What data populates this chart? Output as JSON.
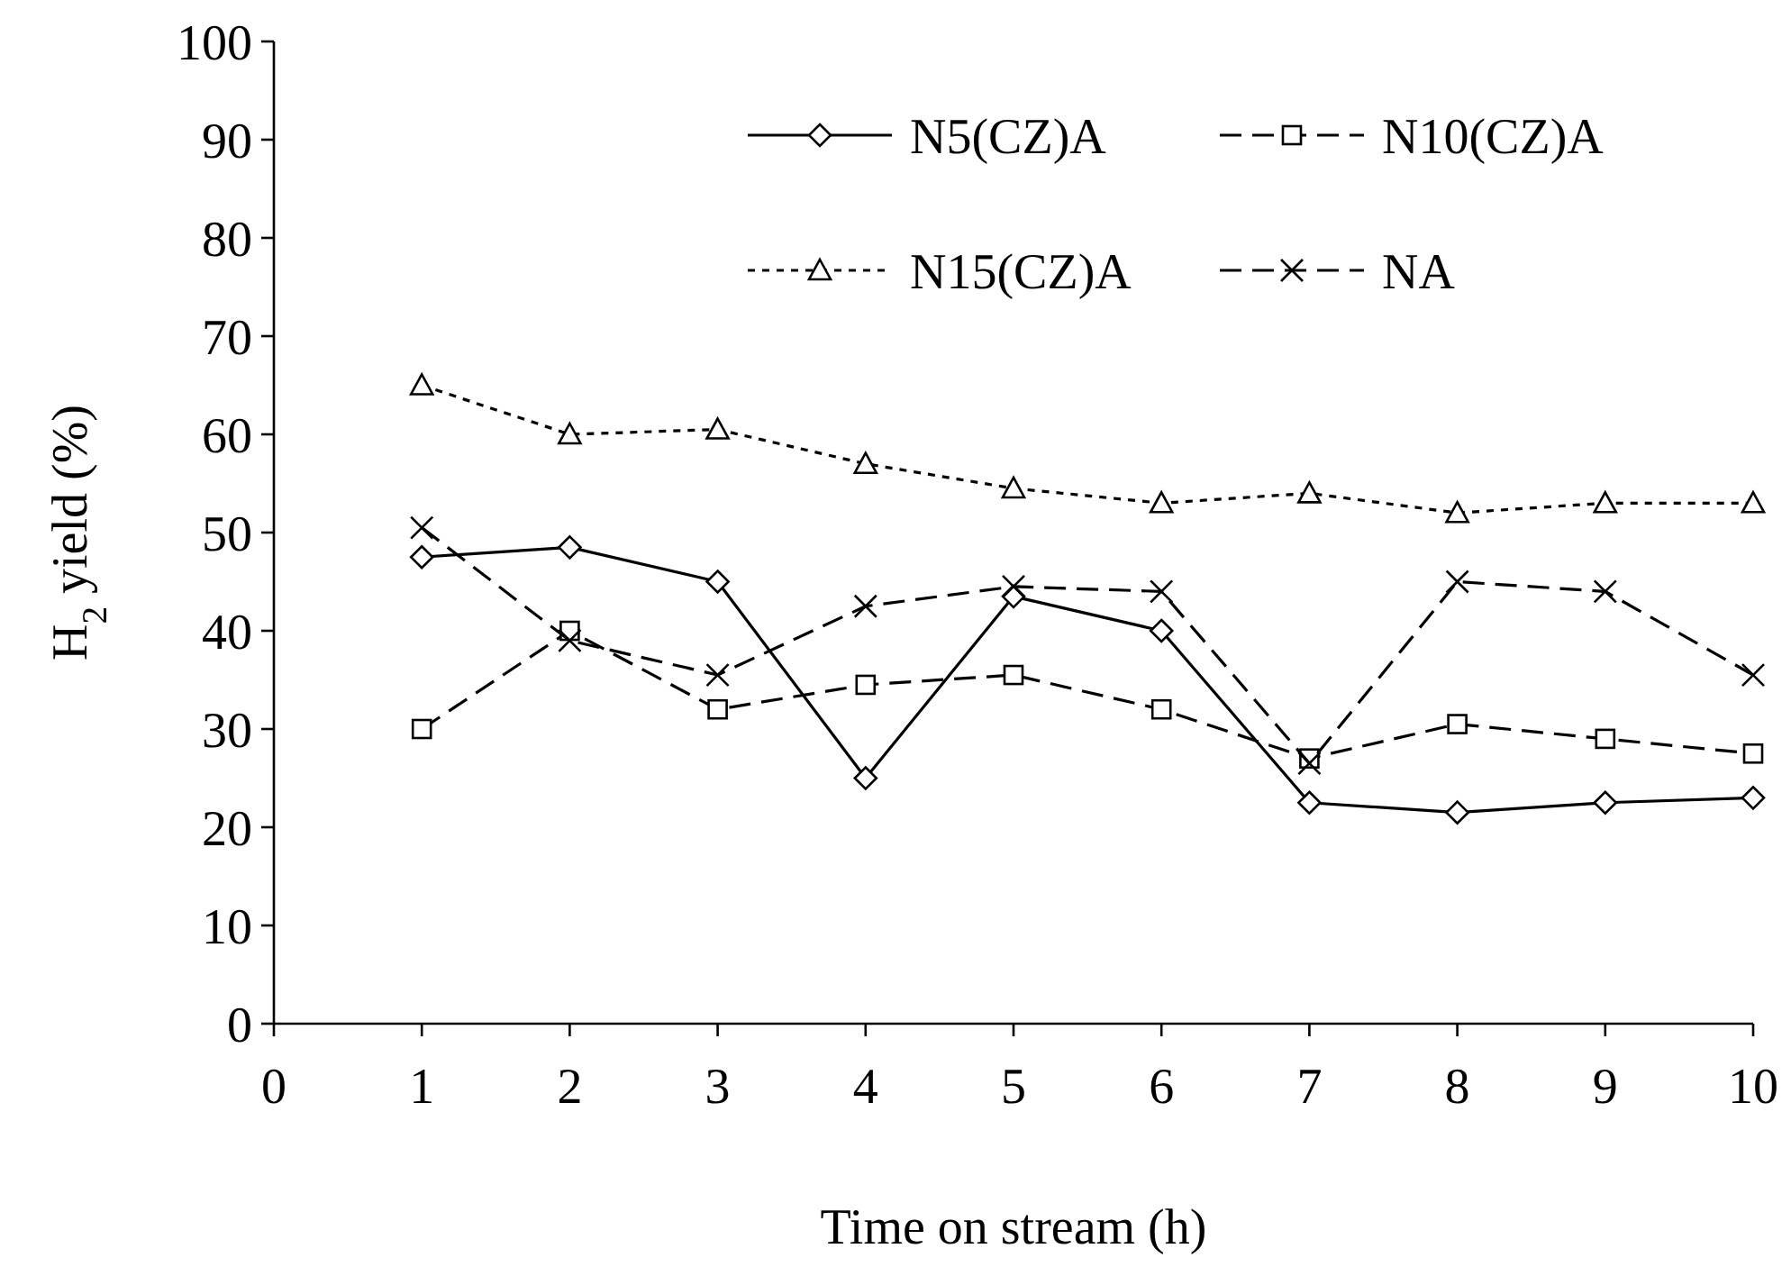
{
  "chart_data": {
    "type": "line",
    "xlabel": "Time on stream (h)",
    "ylabel": "H$_{2}$ yield (%)",
    "x": [
      1,
      2,
      3,
      4,
      5,
      6,
      7,
      8,
      9,
      10
    ],
    "xlim": [
      0,
      10
    ],
    "xticks": [
      0,
      1,
      2,
      3,
      4,
      5,
      6,
      7,
      8,
      9,
      10
    ],
    "ylim": [
      0,
      100
    ],
    "yticks": [
      0,
      10,
      20,
      30,
      40,
      50,
      60,
      70,
      80,
      90,
      100
    ],
    "grid": false,
    "legend": "top right",
    "series": [
      {
        "name": "N5(CZ)A",
        "color": "#000000",
        "marker": "diamond",
        "line_style": "solid",
        "values": [
          47.5,
          48.5,
          45,
          25,
          43.5,
          40,
          22.5,
          21.5,
          22.5,
          23
        ]
      },
      {
        "name": "N10(CZ)A",
        "color": "#000000",
        "marker": "square",
        "line_style": "dashed",
        "values": [
          30,
          40,
          32,
          34.5,
          35.5,
          32,
          27,
          30.5,
          29,
          27.5
        ]
      },
      {
        "name": "N15(CZ)A",
        "color": "#000000",
        "marker": "triangle",
        "line_style": "dotted",
        "values": [
          65,
          60,
          60.5,
          57,
          54.5,
          53,
          54,
          52,
          53,
          53
        ]
      },
      {
        "name": "NA",
        "color": "#000000",
        "marker": "cross",
        "line_style": "dashed",
        "values": [
          50.5,
          39,
          35.5,
          42.5,
          44.5,
          44,
          26.5,
          45,
          44,
          35.5
        ]
      }
    ]
  }
}
